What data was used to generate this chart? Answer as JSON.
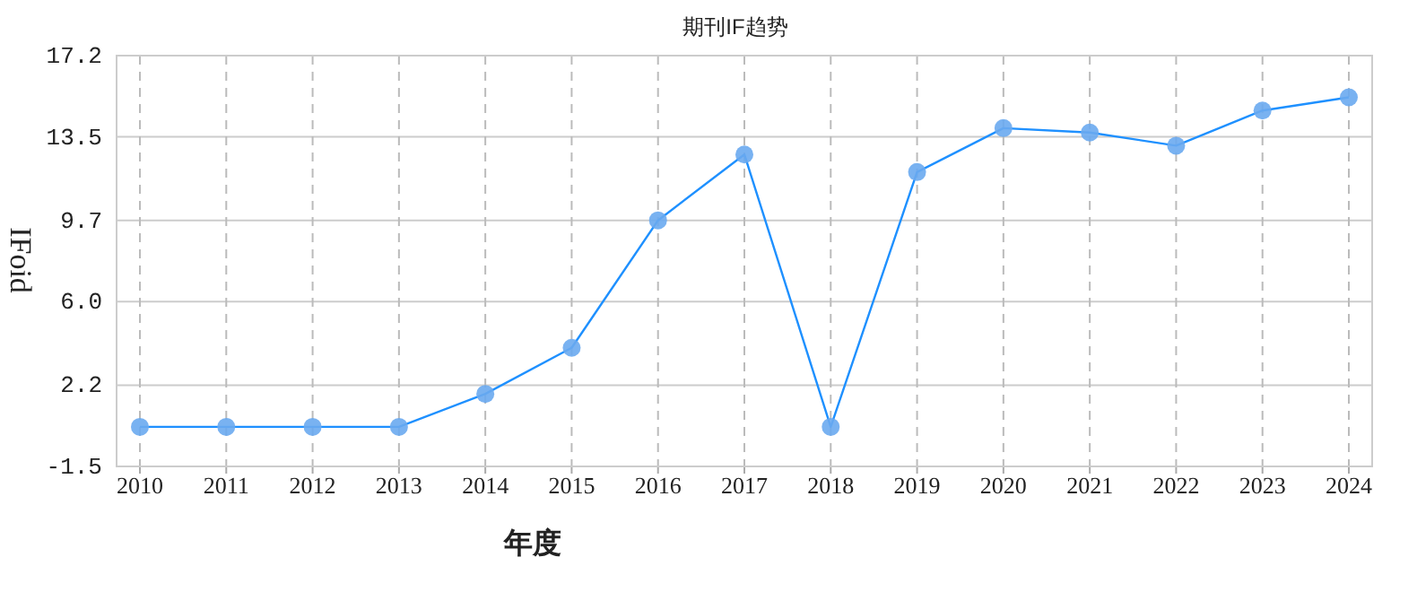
{
  "chart_data": {
    "type": "line",
    "title": "期刊IF趋势",
    "xlabel": "年度",
    "ylabel": "IFoid",
    "categories": [
      "2010",
      "2011",
      "2012",
      "2013",
      "2014",
      "2015",
      "2016",
      "2017",
      "2018",
      "2019",
      "2020",
      "2021",
      "2022",
      "2023",
      "2024"
    ],
    "series": [
      {
        "color": "#1e90ff",
        "values": [
          0.3,
          0.3,
          0.3,
          0.3,
          1.8,
          3.9,
          9.7,
          12.7,
          0.3,
          11.9,
          13.9,
          13.7,
          13.1,
          14.7,
          15.3
        ]
      }
    ],
    "ylim": [
      -1.5,
      17.2
    ],
    "yticks": [
      -1.5,
      2.2,
      {
        "value": 6,
        "label": "6.0"
      },
      9.7,
      13.5,
      17.2
    ],
    "grid": true,
    "marker": "circle",
    "line_style": "solid"
  }
}
